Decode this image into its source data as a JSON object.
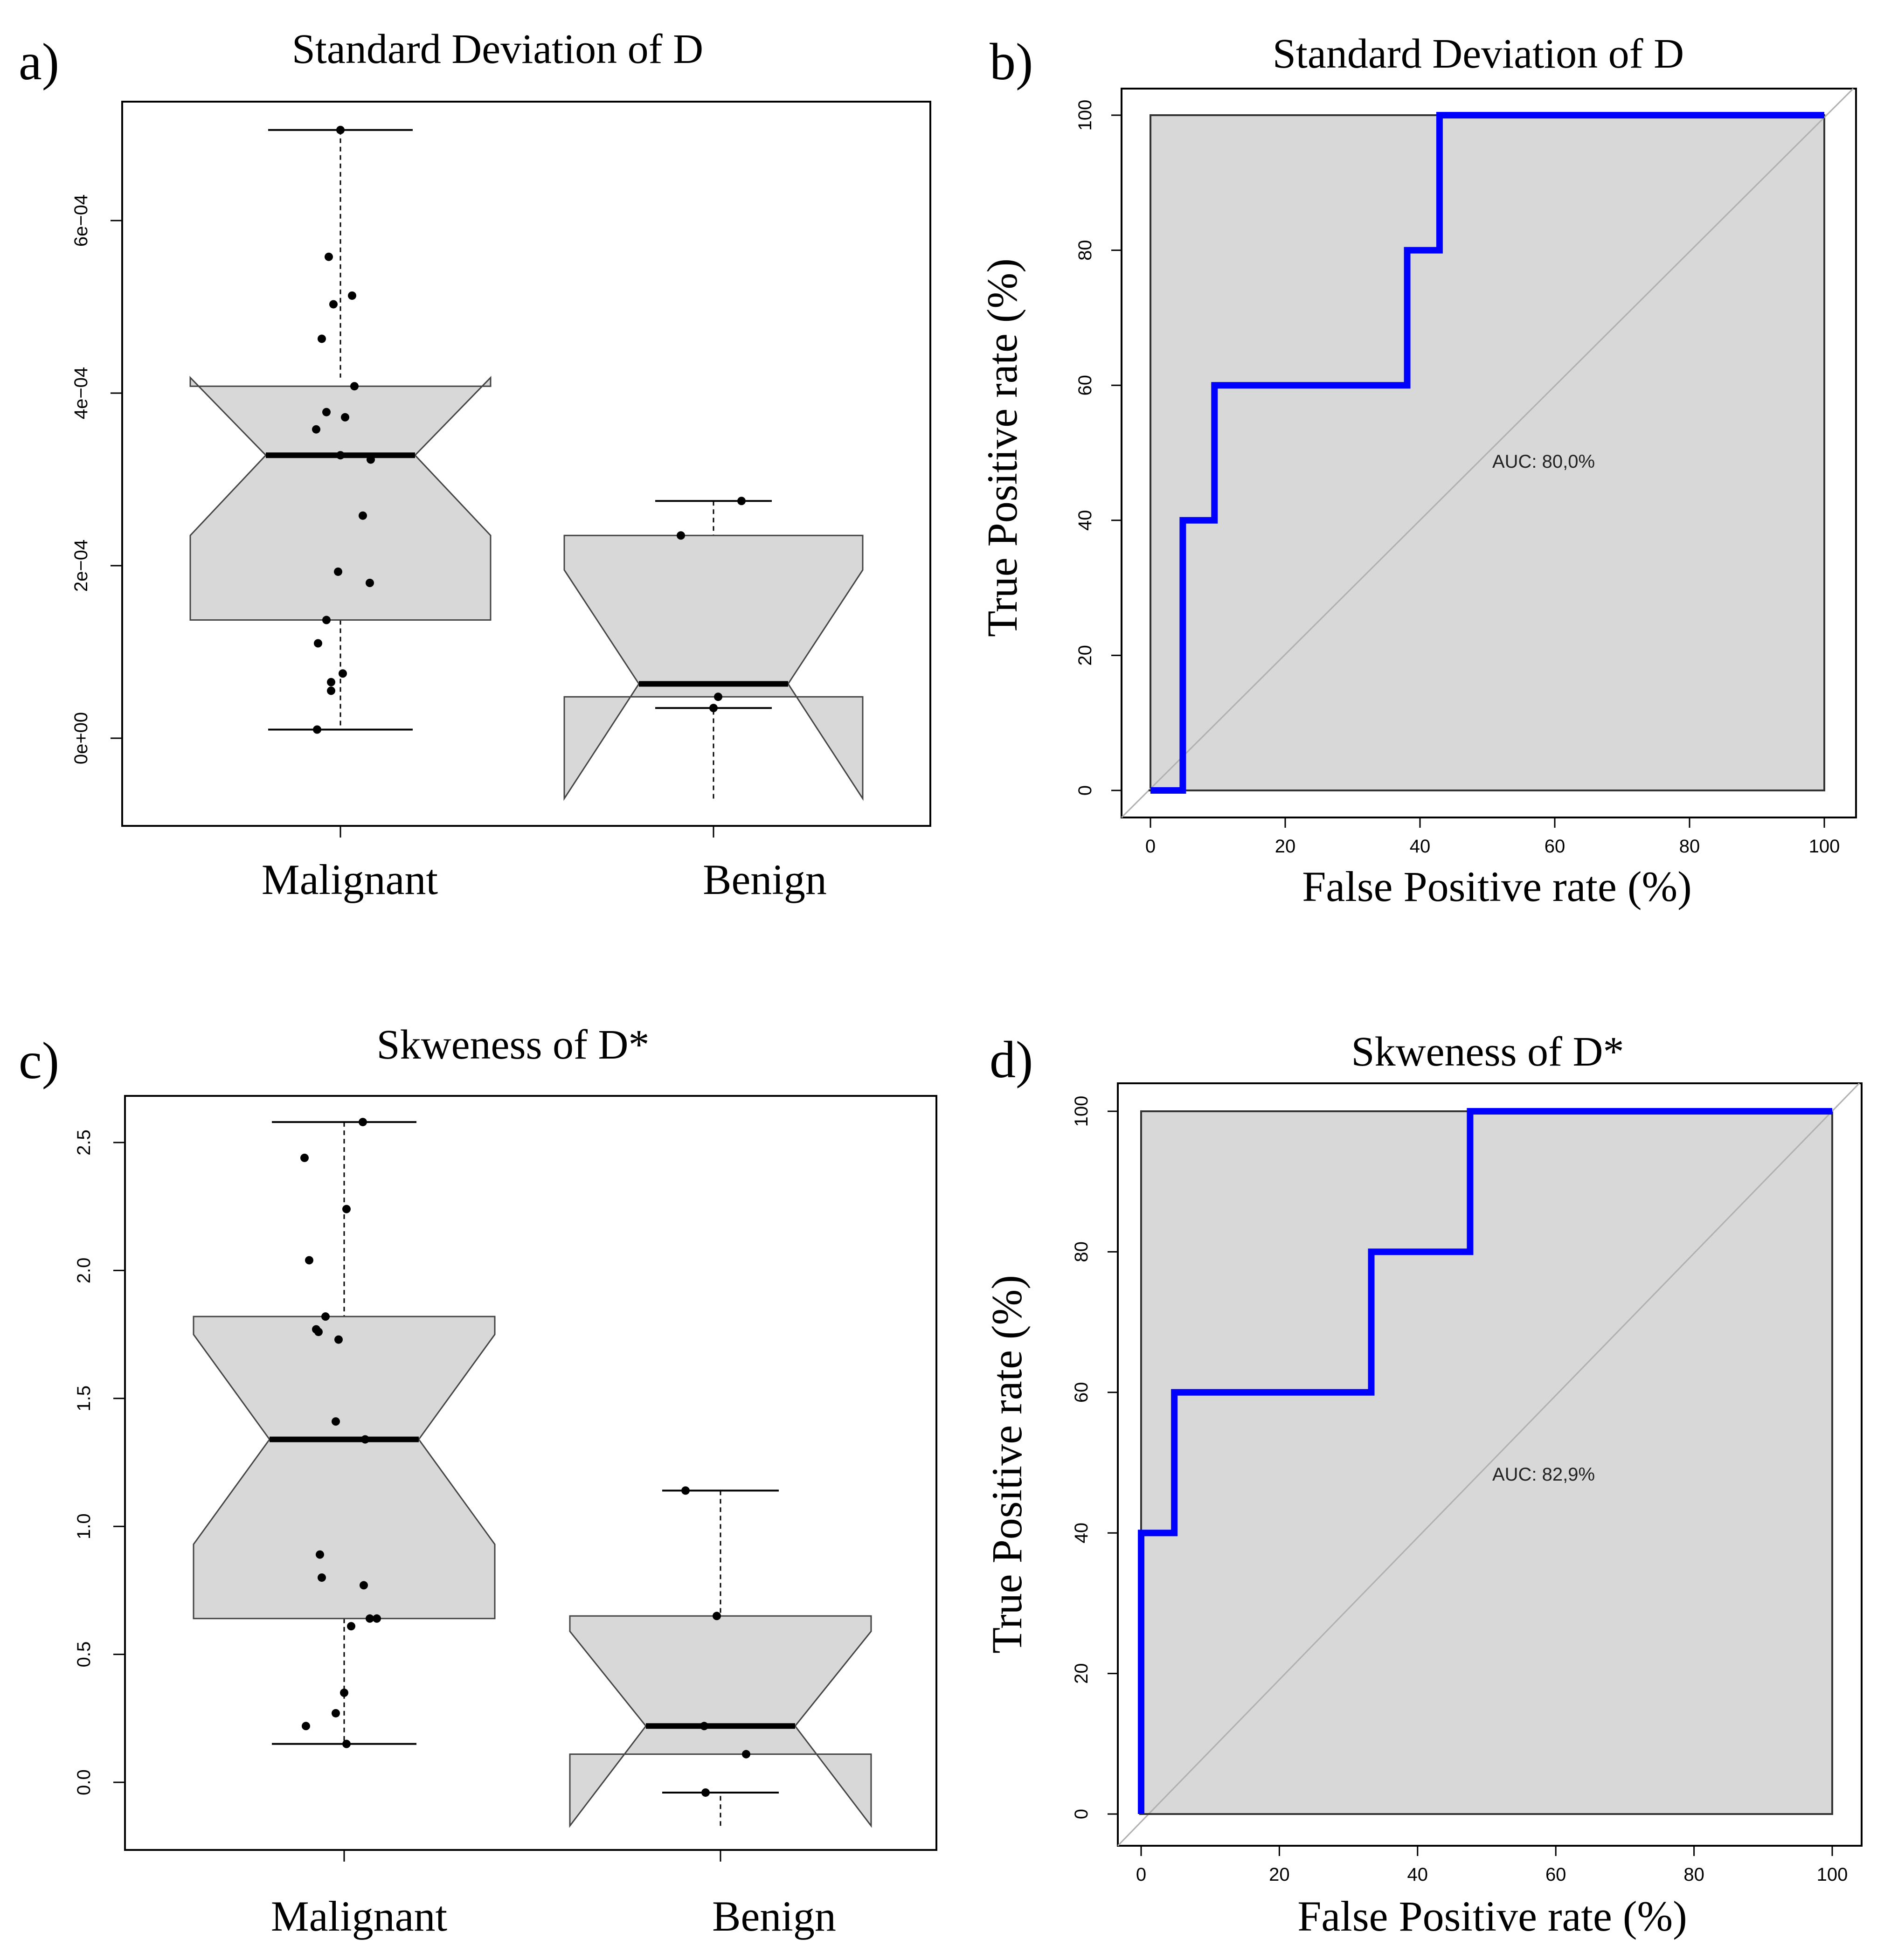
{
  "colors": {
    "box_fill": "#d8d8d8",
    "roc_line": "#0000ff",
    "diag": "#b0b0b0",
    "frame": "#000000"
  },
  "chart_data": [
    {
      "panel": "a)",
      "type": "boxplot",
      "title": "Standard Deviation of D",
      "categories": [
        "Malignant",
        "Benign"
      ],
      "ylim": [
        -0.0001,
        0.00072
      ],
      "yticks": [
        0,
        0.0002,
        0.0004,
        0.0006
      ],
      "ytick_labels": [
        "0e+00",
        "2e−04",
        "4e−04",
        "6e−04"
      ],
      "boxes": [
        {
          "name": "Malignant",
          "whisker_low": 1e-05,
          "q1": 0.000137,
          "median": 0.000328,
          "q3": 0.000408,
          "whisker_high": 0.000705,
          "notch_low": 0.000235,
          "notch_high": 0.000418,
          "points": [
            0.000705,
            0.000558,
            0.000513,
            0.000503,
            0.000463,
            0.000408,
            0.000378,
            0.000372,
            0.000358,
            0.000328,
            0.000323,
            0.000258,
            0.000193,
            0.00018,
            0.000137,
            0.00011,
            7.5e-05,
            6.5e-05,
            5.5e-05,
            1e-05
          ]
        },
        {
          "name": "Benign",
          "whisker_low": 3.5e-05,
          "q1": 4.8e-05,
          "median": 6.3e-05,
          "q3": 0.000235,
          "whisker_high": 0.000275,
          "notch_low": -7e-05,
          "notch_high": 0.000195,
          "points": [
            0.000275,
            0.000235,
            4.8e-05,
            3.5e-05
          ]
        }
      ]
    },
    {
      "panel": "b)",
      "type": "line",
      "title": "Standard Deviation of D",
      "xlabel": "False Positive rate (%)",
      "ylabel": "True Positive rate (%)",
      "xlim": [
        0,
        100
      ],
      "ylim": [
        0,
        100
      ],
      "xticks": [
        0,
        20,
        40,
        60,
        80,
        100
      ],
      "yticks": [
        0,
        20,
        40,
        60,
        80,
        100
      ],
      "auc_label": "AUC: 80,0%",
      "series": [
        {
          "name": "ROC",
          "x": [
            0,
            4.8,
            4.8,
            9.5,
            9.5,
            38.1,
            38.1,
            42.9,
            42.9,
            100
          ],
          "y": [
            0,
            0,
            40,
            40,
            60,
            60,
            80,
            80,
            100,
            100
          ]
        }
      ]
    },
    {
      "panel": "c)",
      "type": "boxplot",
      "title": "Skweness of D*",
      "categories": [
        "Malignant",
        "Benign"
      ],
      "ylim": [
        -0.27,
        2.69
      ],
      "yticks": [
        0,
        0.5,
        1,
        1.5,
        2,
        2.5
      ],
      "ytick_labels": [
        "0.0",
        "0.5",
        "1.0",
        "1.5",
        "2.0",
        "2.5"
      ],
      "boxes": [
        {
          "name": "Malignant",
          "whisker_low": 0.15,
          "q1": 0.64,
          "median": 1.34,
          "q3": 1.82,
          "whisker_high": 2.58,
          "notch_low": 0.93,
          "notch_high": 1.75,
          "points": [
            2.58,
            2.44,
            2.24,
            2.04,
            1.82,
            1.77,
            1.76,
            1.73,
            1.41,
            1.34,
            0.89,
            0.8,
            0.77,
            0.64,
            0.64,
            0.61,
            0.35,
            0.27,
            0.22,
            0.15
          ]
        },
        {
          "name": "Benign",
          "whisker_low": -0.04,
          "q1": 0.11,
          "median": 0.22,
          "q3": 0.65,
          "whisker_high": 1.14,
          "notch_low": -0.17,
          "notch_high": 0.59,
          "points": [
            1.14,
            0.65,
            0.22,
            0.11,
            -0.04
          ]
        }
      ]
    },
    {
      "panel": "d)",
      "type": "line",
      "title": "Skweness of D*",
      "xlabel": "False Positive rate (%)",
      "ylabel": "True Positive rate (%)",
      "xlim": [
        0,
        100
      ],
      "ylim": [
        0,
        100
      ],
      "xticks": [
        0,
        20,
        40,
        60,
        80,
        100
      ],
      "yticks": [
        0,
        20,
        40,
        60,
        80,
        100
      ],
      "auc_label": "AUC: 82,9%",
      "series": [
        {
          "name": "ROC",
          "x": [
            0,
            0,
            4.8,
            4.8,
            33.3,
            33.3,
            47.6,
            47.6,
            100
          ],
          "y": [
            0,
            40,
            40,
            60,
            60,
            80,
            80,
            100,
            100
          ]
        }
      ]
    }
  ]
}
